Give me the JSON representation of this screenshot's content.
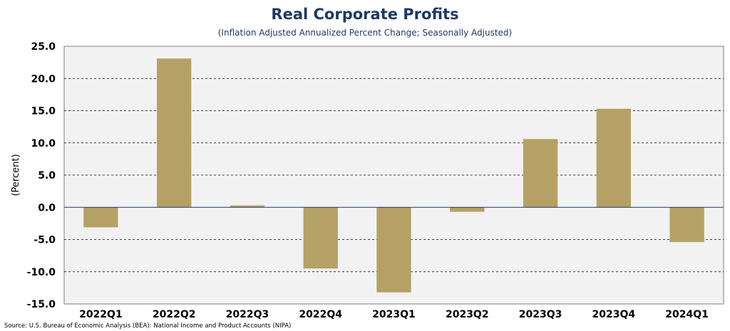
{
  "chart_data": {
    "type": "bar",
    "title": "Real Corporate Profits",
    "subtitle": "(Inflation Adjusted Annualized Percent Change; Seasonally Adjusted)",
    "xlabel": "",
    "ylabel": "(Percent)",
    "categories": [
      "2022Q1",
      "2022Q2",
      "2022Q3",
      "2022Q4",
      "2023Q1",
      "2023Q2",
      "2023Q3",
      "2023Q4",
      "2024Q1"
    ],
    "values": [
      -3.1,
      23.1,
      0.3,
      -9.5,
      -13.2,
      -0.7,
      10.6,
      15.3,
      -5.4
    ],
    "ylim": [
      -15,
      25
    ],
    "yticks": [
      25,
      20,
      15,
      10,
      5,
      0,
      -5,
      -10,
      -15
    ],
    "ytick_labels": [
      "25.0",
      "20.0",
      "15.0",
      "10.0",
      "5.0",
      "0.0",
      "-5.0",
      "-10.0",
      "-15.0"
    ],
    "grid": true,
    "legend": "none",
    "source": "Source: U.S. Bureau of Economic Analysis (BEA): National Income and Product Accounts (NIPA)",
    "colors": {
      "bar": "#b5a165",
      "title": "#1f3864",
      "plot_background": "#f2f2f2",
      "text": "#000000"
    }
  }
}
